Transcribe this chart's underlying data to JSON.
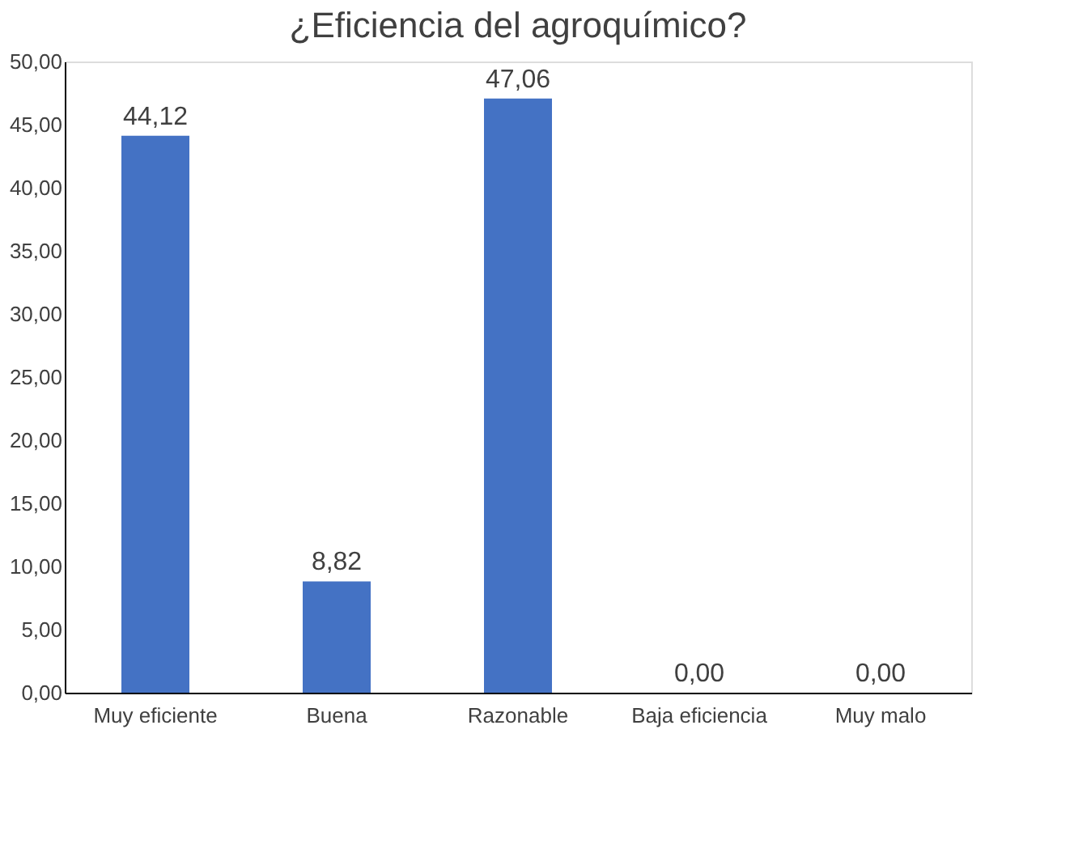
{
  "chart_data": {
    "type": "bar",
    "title": "¿Eficiencia del agroquímico?",
    "categories": [
      "Muy eficiente",
      "Buena",
      "Razonable",
      "Baja eficiencia",
      "Muy malo"
    ],
    "values": [
      44.12,
      8.82,
      47.06,
      0.0,
      0.0
    ],
    "value_labels": [
      "44,12",
      "8,82",
      "47,06",
      "0,00",
      "0,00"
    ],
    "color": "#4472c4",
    "ylim": [
      0,
      50
    ],
    "yticks": [
      {
        "value": 0,
        "label": "0,00"
      },
      {
        "value": 5,
        "label": "5,00"
      },
      {
        "value": 10,
        "label": "10,00"
      },
      {
        "value": 15,
        "label": "15,00"
      },
      {
        "value": 20,
        "label": "20,00"
      },
      {
        "value": 25,
        "label": "25,00"
      },
      {
        "value": 30,
        "label": "30,00"
      },
      {
        "value": 35,
        "label": "35,00"
      },
      {
        "value": 40,
        "label": "40,00"
      },
      {
        "value": 45,
        "label": "45,00"
      },
      {
        "value": 50,
        "label": "50,00"
      }
    ],
    "grid": false
  }
}
